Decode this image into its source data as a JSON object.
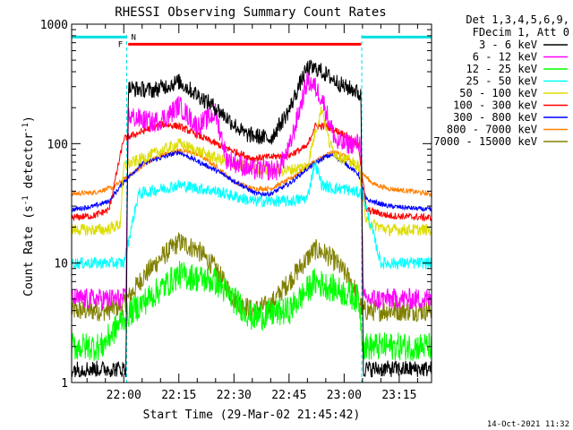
{
  "chart_data": {
    "type": "line",
    "title": "RHESSI Observing Summary Count Rates",
    "xlabel": "Start Time (29-Mar-02 21:45:42)",
    "ylabel_parts": [
      "Count Rate (s",
      "-1",
      " detector",
      "-1",
      ")"
    ],
    "y_scale": "log",
    "ylim": [
      1,
      1000
    ],
    "xlim_minutes": [
      -14.2,
      83.8
    ],
    "x_ticks": [
      {
        "label": "22:00",
        "min": 0
      },
      {
        "label": "22:15",
        "min": 15
      },
      {
        "label": "22:30",
        "min": 30
      },
      {
        "label": "22:45",
        "min": 45
      },
      {
        "label": "23:00",
        "min": 60
      },
      {
        "label": "23:15",
        "min": 75
      }
    ],
    "y_ticks": [
      {
        "label": "1",
        "value": 1
      },
      {
        "label": "10",
        "value": 10
      },
      {
        "label": "100",
        "value": 100
      },
      {
        "label": "1000",
        "value": 1000
      }
    ],
    "legend_header": [
      "Det 1,3,4,5,6,9,",
      "FDecim 1, Att 0"
    ],
    "legend_position": "right",
    "x_unit": "minutes after 22:00",
    "day_boundaries": [
      0.8,
      64.8
    ],
    "series": [
      {
        "name": "3 - 6 keV",
        "color": "#000000",
        "x": [
          -14,
          0.6,
          1.2,
          8,
          15,
          25,
          33,
          40,
          45,
          48,
          50,
          53,
          55,
          60,
          63,
          64.6,
          65.2,
          72,
          83
        ],
        "y": [
          1.3,
          1.3,
          290,
          280,
          330,
          200,
          120,
          110,
          190,
          320,
          430,
          420,
          380,
          300,
          280,
          250,
          1.3,
          1.3,
          1.3
        ],
        "noise": 0.07
      },
      {
        "name": "6 - 12 keV",
        "color": "#ff00ff",
        "x": [
          -14,
          0.6,
          1.2,
          8,
          12,
          15,
          20,
          25,
          28,
          35,
          42,
          45,
          48,
          50,
          52,
          54,
          56,
          58,
          60,
          64.6,
          65.2,
          83
        ],
        "y": [
          5,
          5,
          170,
          150,
          170,
          210,
          140,
          180,
          75,
          60,
          60,
          90,
          200,
          340,
          300,
          240,
          150,
          100,
          100,
          100,
          5,
          5
        ],
        "noise": 0.09
      },
      {
        "name": "12 - 25 keV",
        "color": "#00ff00",
        "x": [
          -14,
          -6,
          0,
          15,
          25,
          35,
          45,
          52,
          58,
          64,
          65.2,
          72,
          83
        ],
        "y": [
          2,
          2,
          3.5,
          8,
          7,
          3.5,
          4,
          7,
          6,
          5,
          2,
          2,
          2
        ],
        "noise": 0.12
      },
      {
        "name": "25 - 50 keV",
        "color": "#00ffff",
        "x": [
          -14,
          -3,
          0,
          4,
          15,
          25,
          35,
          45,
          50,
          52,
          54,
          57,
          60,
          65,
          70,
          80,
          83
        ],
        "y": [
          10,
          10,
          10,
          38,
          45,
          40,
          33,
          33,
          35,
          70,
          45,
          42,
          42,
          38,
          10,
          10,
          10
        ],
        "noise": 0.05
      },
      {
        "name": "50 - 100 keV",
        "color": "#dddd00",
        "x": [
          -14,
          -5,
          -1,
          0,
          15,
          28,
          38,
          45,
          50,
          52,
          54,
          56,
          58,
          64,
          66,
          72,
          83
        ],
        "y": [
          19,
          19,
          21,
          65,
          100,
          70,
          60,
          60,
          65,
          120,
          200,
          100,
          80,
          65,
          22,
          19,
          19
        ],
        "noise": 0.05
      },
      {
        "name": "100 - 300 keV",
        "color": "#ff0000",
        "x": [
          -14,
          -8,
          -4,
          0,
          10,
          15,
          25,
          35,
          45,
          50,
          52,
          55,
          60,
          64,
          66,
          72,
          83
        ],
        "y": [
          24,
          25,
          28,
          110,
          145,
          140,
          100,
          75,
          80,
          95,
          140,
          140,
          120,
          95,
          28,
          25,
          24
        ],
        "noise": 0.03
      },
      {
        "name": "300 - 800 keV",
        "color": "#0000ff",
        "x": [
          -14,
          -8,
          -4,
          0,
          5,
          15,
          25,
          32,
          36,
          40,
          45,
          50,
          55,
          57,
          60,
          64,
          66,
          72,
          83
        ],
        "y": [
          28,
          30,
          33,
          48,
          68,
          85,
          60,
          45,
          38,
          38,
          46,
          62,
          78,
          80,
          70,
          55,
          34,
          30,
          28
        ],
        "noise": 0.02
      },
      {
        "name": "800 - 7000 keV",
        "color": "#ff8000",
        "x": [
          -14,
          -8,
          -3,
          0,
          5,
          10,
          15,
          20,
          25,
          30,
          35,
          40,
          45,
          50,
          55,
          57,
          60,
          64,
          68,
          72,
          78,
          83
        ],
        "y": [
          38,
          39,
          43,
          50,
          65,
          80,
          88,
          82,
          65,
          48,
          42,
          42,
          50,
          65,
          80,
          85,
          80,
          60,
          46,
          42,
          40,
          38
        ],
        "noise": 0.02
      },
      {
        "name": "7000 - 15000 keV",
        "color": "#808000",
        "x": [
          -14,
          -5,
          0,
          5,
          10,
          15,
          20,
          25,
          30,
          35,
          40,
          45,
          50,
          52,
          55,
          58,
          62,
          64,
          65,
          72,
          83
        ],
        "y": [
          4,
          4,
          4.5,
          7.5,
          11,
          15,
          13,
          9,
          5,
          4,
          4.5,
          7,
          11,
          13,
          12,
          10,
          7,
          5,
          4,
          4,
          4
        ],
        "noise": 0.09
      }
    ],
    "flags": [
      {
        "name": "F",
        "color": "#ff0000",
        "x_range": [
          1.2,
          64.6
        ],
        "y_level": 680
      },
      {
        "name": "N",
        "color": "#00e0e0",
        "x_range": [
          -14.2,
          0.8
        ],
        "y_level": 780
      },
      {
        "name": "N",
        "color": "#00e0e0",
        "x_range": [
          64.8,
          83.8
        ],
        "y_level": 780
      }
    ]
  },
  "footer": {
    "date_stamp": "14-Oct-2021 11:32"
  }
}
